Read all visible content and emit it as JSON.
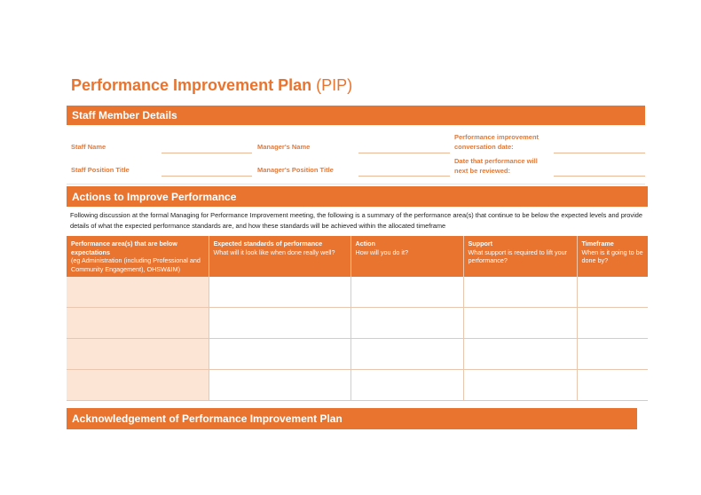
{
  "title": {
    "main": "Performance Improvement Plan",
    "suffix": "(PIP)"
  },
  "colors": {
    "accent": "#e8742f",
    "light_fill": "#fde5d6"
  },
  "staff_details": {
    "heading": "Staff Member Details",
    "fields": [
      {
        "label": "Staff Name",
        "value": ""
      },
      {
        "label": "Manager's Name",
        "value": ""
      },
      {
        "label": "Performance improvement conversation date:",
        "value": ""
      },
      {
        "label": "Staff Position Title",
        "value": ""
      },
      {
        "label": "Manager's Position Title",
        "value": ""
      },
      {
        "label": "Date that performance will next be reviewed:",
        "value": ""
      }
    ]
  },
  "actions": {
    "heading": "Actions to Improve Performance",
    "intro": "Following discussion at the formal Managing for Performance Improvement meeting, the following is a summary of the performance area(s) that continue to be below the expected levels and provide details of what the expected performance standards are, and how these standards will be achieved within the allocated timeframe",
    "columns": [
      {
        "title": "Performance area(s) that are below expectations",
        "sub": "(eg Administration (including Professional and Community Engagement), OHSW&IM)"
      },
      {
        "title": "Expected standards of performance",
        "sub": "What will it look like when done really well?"
      },
      {
        "title": "Action",
        "sub": "How will you do it?"
      },
      {
        "title": "Support",
        "sub": "What support is required to lift your performance?"
      },
      {
        "title": "Timeframe",
        "sub": "When is it going to be done by?"
      }
    ],
    "rows": [
      [
        "",
        "",
        "",
        "",
        ""
      ],
      [
        "",
        "",
        "",
        "",
        ""
      ],
      [
        "",
        "",
        "",
        "",
        ""
      ],
      [
        "",
        "",
        "",
        "",
        ""
      ]
    ]
  },
  "acknowledgement": {
    "heading": "Acknowledgement of Performance Improvement Plan"
  }
}
